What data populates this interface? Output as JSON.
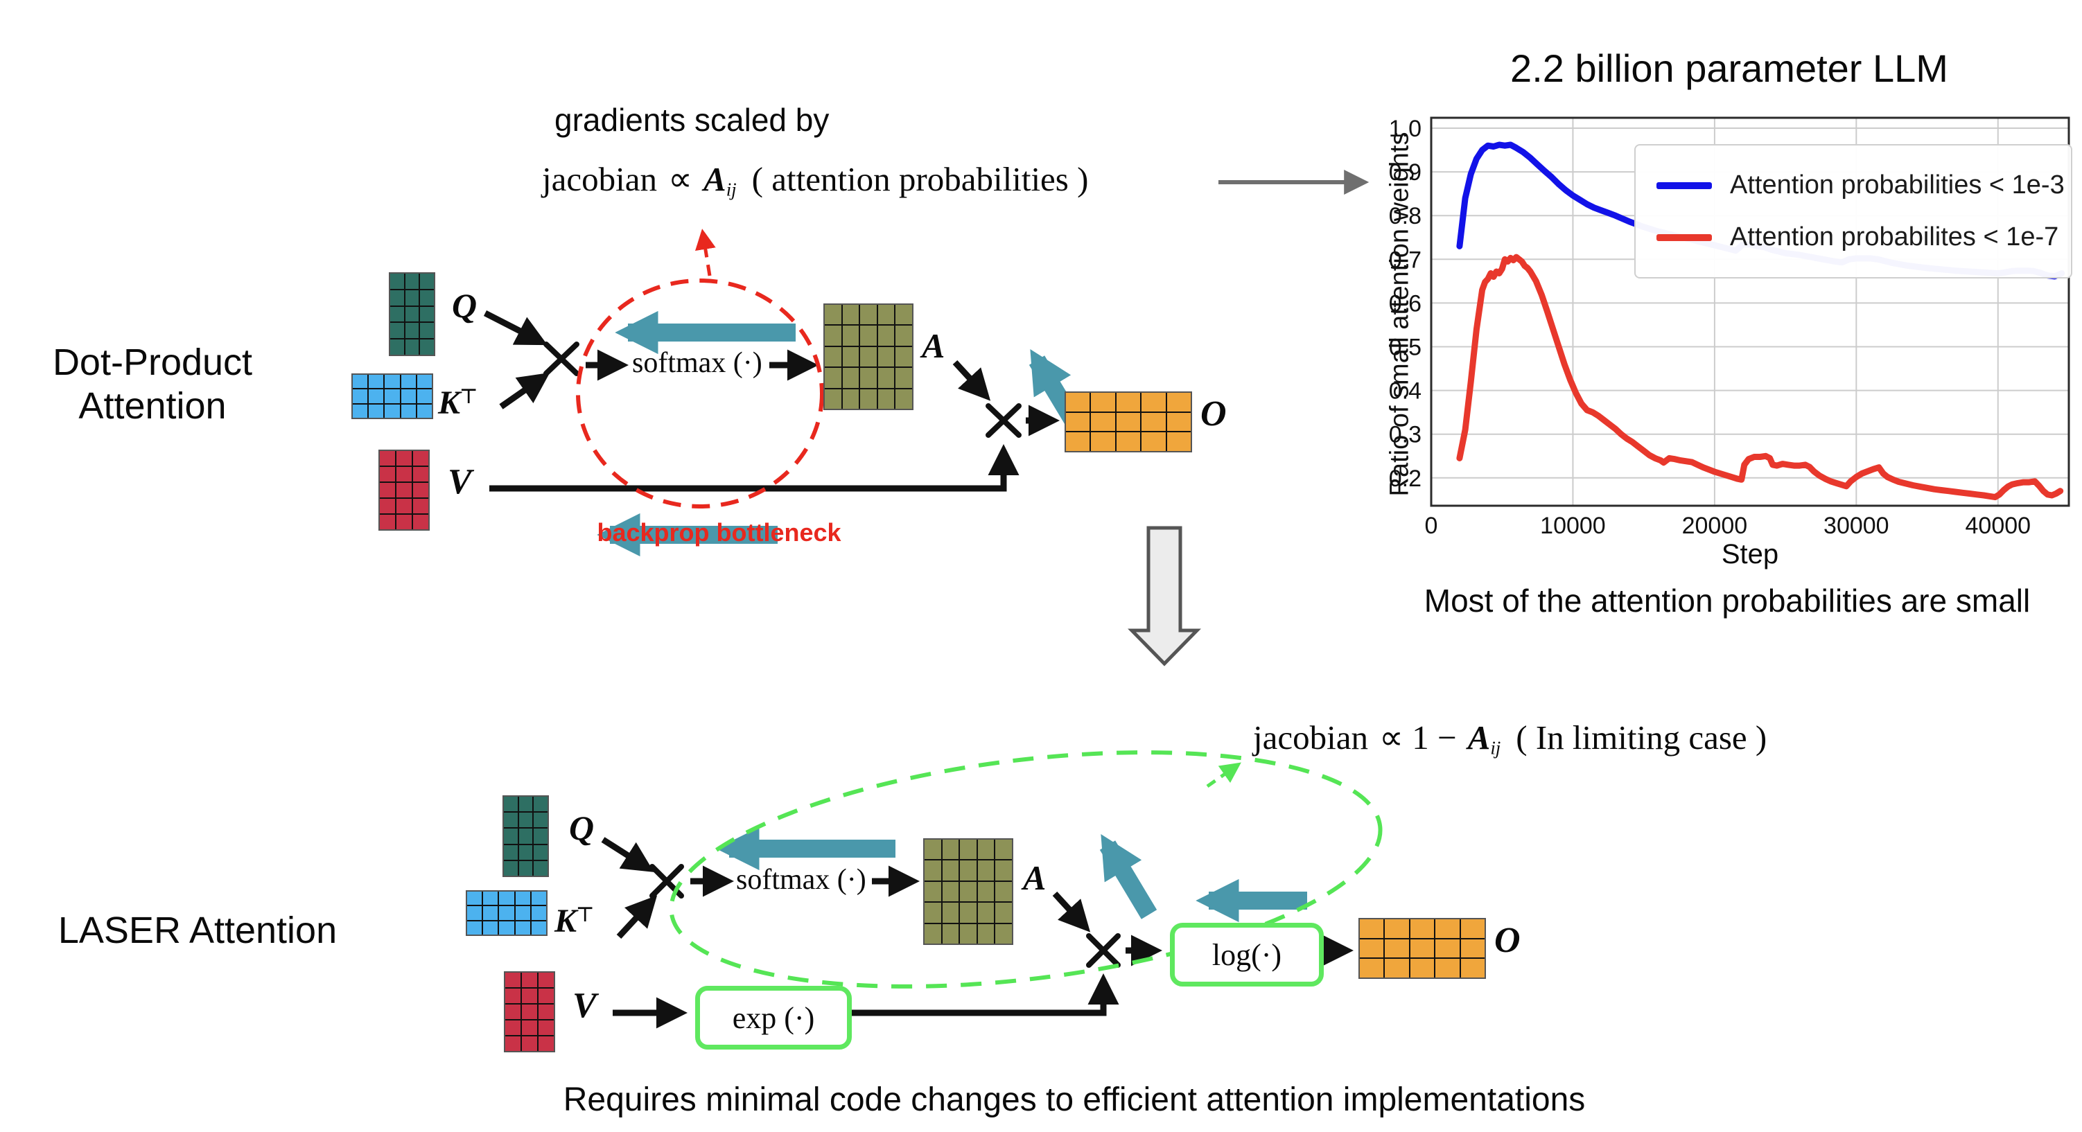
{
  "colors": {
    "teal": "#4a98ab",
    "red_accent": "#e8281e",
    "green_accent": "#55e555",
    "green_box": "#5fe85f",
    "gray_arrow": "#6f6f6f",
    "blue_line": "#1212e8",
    "red_line": "#e8382c"
  },
  "matrices": {
    "q": {
      "rows": 5,
      "cols": 3,
      "fill": "#2e6f63"
    },
    "k": {
      "rows": 3,
      "cols": 5,
      "fill": "#4cb2ef"
    },
    "v": {
      "rows": 5,
      "cols": 3,
      "fill": "#c93247"
    },
    "a": {
      "rows": 5,
      "cols": 5,
      "fill": "#8d9257"
    },
    "o": {
      "rows": 3,
      "cols": 5,
      "fill": "#f0a63c"
    }
  },
  "top": {
    "title_line1": "Dot-Product",
    "title_line2": "Attention",
    "gradients_note": "gradients scaled by",
    "jacobian": {
      "lead": "jacobian",
      "prop": "∝",
      "var": "A",
      "sub": "ij",
      "paren": "( attention probabilities )"
    },
    "bottleneck_label": "backprop bottleneck",
    "softmax_label": "softmax (·)",
    "labels": {
      "q": "Q",
      "k": "K",
      "k_sup": "⊤",
      "v": "V",
      "a": "A",
      "o": "O"
    }
  },
  "bottom": {
    "title": "LASER Attention",
    "jacobian": {
      "lead": "jacobian",
      "prop": "∝ 1 −",
      "var": "A",
      "sub": "ij",
      "paren": "( In limiting case )"
    },
    "softmax_label": "softmax (·)",
    "exp_label": "exp (·)",
    "log_label": "log(·)",
    "labels": {
      "q": "Q",
      "k": "K",
      "k_sup": "⊤",
      "v": "V",
      "a": "A",
      "o": "O"
    },
    "caption": "Requires minimal code changes to efficient attention implementations"
  },
  "chart_data": {
    "type": "line",
    "title": "2.2 billion parameter LLM",
    "xlabel": "Step",
    "ylabel": "Ratio of small attention weights",
    "caption": "Most of the attention probabilities are small",
    "xlim": [
      0,
      45000
    ],
    "ylim": [
      0.1,
      1.02
    ],
    "xticks": [
      0,
      10000,
      20000,
      30000,
      40000
    ],
    "yticks": [
      "1.0",
      "0.9",
      "0.8",
      "0.7",
      "0.6",
      "0.5",
      "0.4",
      "0.3",
      "0.2"
    ],
    "grid": true,
    "legend_position": "upper right",
    "series": [
      {
        "name": "Attention probabilities < 1e-3",
        "color": "#1212e8",
        "points": [
          [
            2000,
            0.73
          ],
          [
            2400,
            0.84
          ],
          [
            2800,
            0.895
          ],
          [
            3200,
            0.93
          ],
          [
            3600,
            0.95
          ],
          [
            4000,
            0.96
          ],
          [
            4400,
            0.958
          ],
          [
            4800,
            0.962
          ],
          [
            5200,
            0.96
          ],
          [
            5600,
            0.962
          ],
          [
            6000,
            0.955
          ],
          [
            6500,
            0.945
          ],
          [
            7000,
            0.932
          ],
          [
            7500,
            0.917
          ],
          [
            8000,
            0.902
          ],
          [
            8500,
            0.888
          ],
          [
            9000,
            0.872
          ],
          [
            9500,
            0.858
          ],
          [
            10000,
            0.846
          ],
          [
            10500,
            0.836
          ],
          [
            11000,
            0.826
          ],
          [
            11500,
            0.818
          ],
          [
            12000,
            0.812
          ],
          [
            12500,
            0.806
          ],
          [
            13000,
            0.8
          ],
          [
            13500,
            0.793
          ],
          [
            14000,
            0.786
          ],
          [
            14500,
            0.78
          ],
          [
            15000,
            0.774
          ],
          [
            15500,
            0.769
          ],
          [
            16000,
            0.764
          ],
          [
            16500,
            0.76
          ],
          [
            17000,
            0.756
          ],
          [
            17500,
            0.752
          ],
          [
            18000,
            0.748
          ],
          [
            18500,
            0.744
          ],
          [
            19000,
            0.74
          ],
          [
            19500,
            0.736
          ],
          [
            20000,
            0.732
          ],
          [
            20500,
            0.728
          ],
          [
            21000,
            0.724
          ],
          [
            21500,
            0.72
          ],
          [
            22000,
            0.734
          ],
          [
            22500,
            0.734
          ],
          [
            23000,
            0.73
          ],
          [
            23500,
            0.728
          ],
          [
            24000,
            0.722
          ],
          [
            24500,
            0.718
          ],
          [
            25000,
            0.714
          ],
          [
            25500,
            0.712
          ],
          [
            26000,
            0.71
          ],
          [
            26500,
            0.707
          ],
          [
            27000,
            0.704
          ],
          [
            27500,
            0.701
          ],
          [
            28000,
            0.698
          ],
          [
            28500,
            0.695
          ],
          [
            29000,
            0.693
          ],
          [
            29500,
            0.7
          ],
          [
            30000,
            0.702
          ],
          [
            30500,
            0.702
          ],
          [
            31000,
            0.702
          ],
          [
            31500,
            0.7
          ],
          [
            32000,
            0.696
          ],
          [
            32500,
            0.692
          ],
          [
            33000,
            0.689
          ],
          [
            33500,
            0.686
          ],
          [
            34000,
            0.684
          ],
          [
            34500,
            0.682
          ],
          [
            35000,
            0.68
          ],
          [
            36000,
            0.677
          ],
          [
            37000,
            0.674
          ],
          [
            38000,
            0.672
          ],
          [
            39000,
            0.67
          ],
          [
            40000,
            0.668
          ],
          [
            40500,
            0.67
          ],
          [
            41000,
            0.673
          ],
          [
            41500,
            0.674
          ],
          [
            42000,
            0.674
          ],
          [
            42500,
            0.673
          ],
          [
            43000,
            0.669
          ],
          [
            43500,
            0.663
          ],
          [
            44000,
            0.661
          ],
          [
            44500,
            0.668
          ]
        ]
      },
      {
        "name": "Attention probabilites < 1e-7",
        "color": "#e8382c",
        "points": [
          [
            2000,
            0.245
          ],
          [
            2400,
            0.31
          ],
          [
            2800,
            0.42
          ],
          [
            3200,
            0.54
          ],
          [
            3600,
            0.63
          ],
          [
            3800,
            0.648
          ],
          [
            4000,
            0.655
          ],
          [
            4200,
            0.668
          ],
          [
            4400,
            0.66
          ],
          [
            4600,
            0.672
          ],
          [
            4800,
            0.668
          ],
          [
            5000,
            0.678
          ],
          [
            5200,
            0.7
          ],
          [
            5400,
            0.695
          ],
          [
            5600,
            0.703
          ],
          [
            5800,
            0.698
          ],
          [
            6000,
            0.705
          ],
          [
            6200,
            0.7
          ],
          [
            6400,
            0.695
          ],
          [
            6600,
            0.685
          ],
          [
            6800,
            0.68
          ],
          [
            7000,
            0.672
          ],
          [
            7400,
            0.65
          ],
          [
            7800,
            0.618
          ],
          [
            8200,
            0.58
          ],
          [
            8600,
            0.54
          ],
          [
            9000,
            0.5
          ],
          [
            9400,
            0.46
          ],
          [
            9800,
            0.425
          ],
          [
            10200,
            0.395
          ],
          [
            10600,
            0.37
          ],
          [
            11000,
            0.355
          ],
          [
            11400,
            0.35
          ],
          [
            11800,
            0.342
          ],
          [
            12200,
            0.332
          ],
          [
            12600,
            0.322
          ],
          [
            13000,
            0.312
          ],
          [
            13400,
            0.3
          ],
          [
            13800,
            0.29
          ],
          [
            14200,
            0.282
          ],
          [
            14600,
            0.272
          ],
          [
            15000,
            0.262
          ],
          [
            15400,
            0.252
          ],
          [
            15800,
            0.245
          ],
          [
            16200,
            0.24
          ],
          [
            16400,
            0.235
          ],
          [
            16800,
            0.245
          ],
          [
            17200,
            0.243
          ],
          [
            17600,
            0.24
          ],
          [
            18000,
            0.238
          ],
          [
            18400,
            0.236
          ],
          [
            18800,
            0.23
          ],
          [
            19200,
            0.224
          ],
          [
            19600,
            0.219
          ],
          [
            20000,
            0.214
          ],
          [
            20400,
            0.21
          ],
          [
            20800,
            0.206
          ],
          [
            21200,
            0.202
          ],
          [
            21600,
            0.198
          ],
          [
            21900,
            0.196
          ],
          [
            22100,
            0.23
          ],
          [
            22400,
            0.243
          ],
          [
            22800,
            0.248
          ],
          [
            23200,
            0.248
          ],
          [
            23600,
            0.25
          ],
          [
            23900,
            0.245
          ],
          [
            24100,
            0.23
          ],
          [
            24400,
            0.228
          ],
          [
            24800,
            0.232
          ],
          [
            25200,
            0.23
          ],
          [
            25600,
            0.228
          ],
          [
            26000,
            0.228
          ],
          [
            26400,
            0.23
          ],
          [
            26700,
            0.225
          ],
          [
            27000,
            0.215
          ],
          [
            27400,
            0.205
          ],
          [
            27800,
            0.198
          ],
          [
            28200,
            0.192
          ],
          [
            28600,
            0.188
          ],
          [
            29000,
            0.184
          ],
          [
            29300,
            0.181
          ],
          [
            29600,
            0.192
          ],
          [
            30000,
            0.202
          ],
          [
            30400,
            0.21
          ],
          [
            30800,
            0.215
          ],
          [
            31200,
            0.22
          ],
          [
            31600,
            0.224
          ],
          [
            31900,
            0.21
          ],
          [
            32200,
            0.202
          ],
          [
            32600,
            0.196
          ],
          [
            33000,
            0.191
          ],
          [
            33500,
            0.187
          ],
          [
            34000,
            0.183
          ],
          [
            34500,
            0.18
          ],
          [
            35000,
            0.177
          ],
          [
            35500,
            0.174
          ],
          [
            36000,
            0.172
          ],
          [
            36500,
            0.17
          ],
          [
            37000,
            0.168
          ],
          [
            37500,
            0.166
          ],
          [
            38000,
            0.164
          ],
          [
            38500,
            0.162
          ],
          [
            39000,
            0.16
          ],
          [
            39400,
            0.158
          ],
          [
            39800,
            0.156
          ],
          [
            40100,
            0.162
          ],
          [
            40400,
            0.172
          ],
          [
            40700,
            0.18
          ],
          [
            41000,
            0.185
          ],
          [
            41400,
            0.188
          ],
          [
            41800,
            0.19
          ],
          [
            42200,
            0.19
          ],
          [
            42600,
            0.192
          ],
          [
            42900,
            0.182
          ],
          [
            43200,
            0.17
          ],
          [
            43500,
            0.162
          ],
          [
            43800,
            0.16
          ],
          [
            44100,
            0.164
          ],
          [
            44400,
            0.17
          ]
        ]
      }
    ]
  }
}
